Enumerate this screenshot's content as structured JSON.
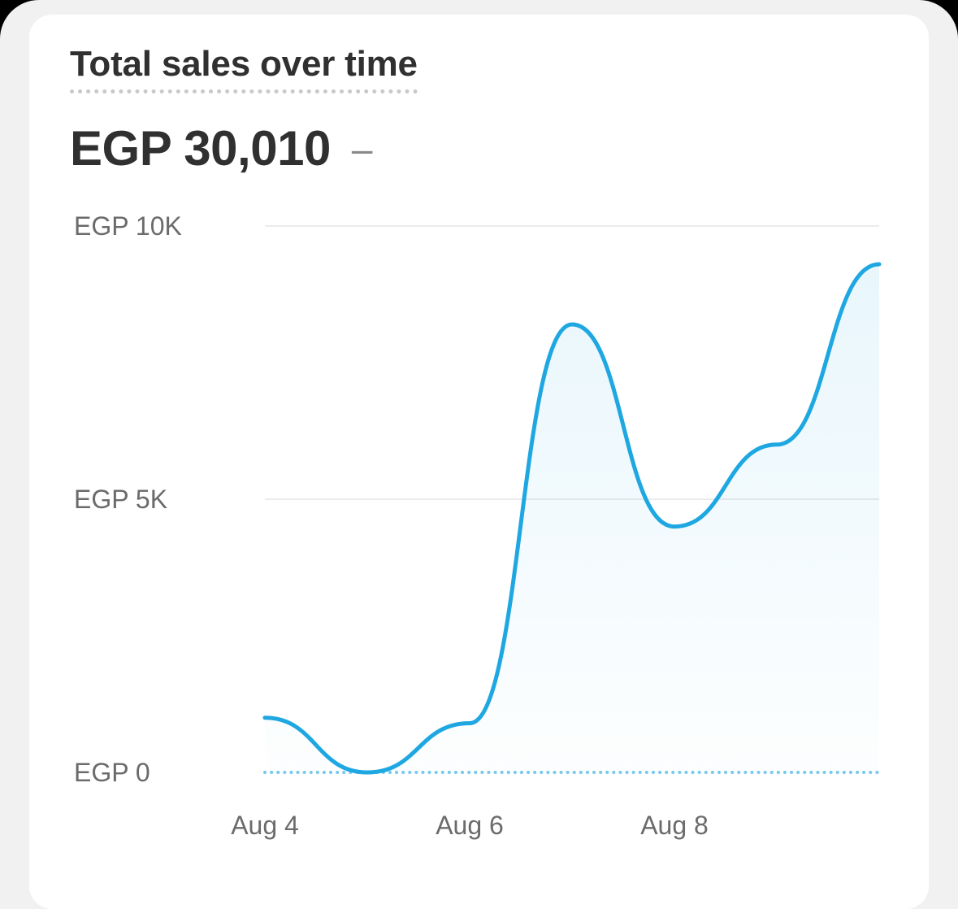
{
  "card": {
    "title": "Total sales over time",
    "total_value": "EGP 30,010",
    "change_indicator": "–"
  },
  "colors": {
    "line": "#1ea7e1",
    "gridline": "#ebebeb",
    "text_primary": "#303030",
    "text_axis": "#6b6b6b",
    "card_background": "#ffffff",
    "page_background": "#f1f1f1"
  },
  "chart_data": {
    "type": "area",
    "title": "Total sales over time",
    "xlabel": "",
    "ylabel": "",
    "x": [
      "Aug 4",
      "Aug 5",
      "Aug 6",
      "Aug 7",
      "Aug 8",
      "Aug 9",
      "Aug 10"
    ],
    "x_tick_labels": [
      "Aug 4",
      "Aug 6",
      "Aug 8"
    ],
    "y_tick_labels": [
      "EGP 10K",
      "EGP 5K",
      "EGP 0"
    ],
    "y_ticks": [
      10000,
      5000,
      0
    ],
    "ylim": [
      0,
      10000
    ],
    "grid": true,
    "legend": "none",
    "series": [
      {
        "values": [
          1000,
          0,
          900,
          8200,
          4500,
          6000,
          9300
        ]
      }
    ]
  }
}
